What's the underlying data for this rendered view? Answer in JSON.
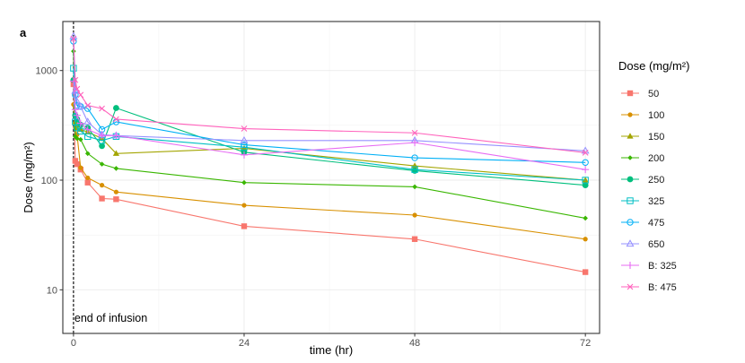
{
  "chart_data": {
    "type": "line",
    "panel_label": "a",
    "xlabel": "time (hr)",
    "ylabel": "Dose (mg/m²)",
    "y_scale": "log10",
    "xlim": [
      -1.5,
      74
    ],
    "ylim": [
      4,
      2800
    ],
    "x_ticks": [
      0,
      24,
      48,
      72
    ],
    "y_ticks": [
      10,
      100,
      1000
    ],
    "grid": true,
    "legend": {
      "title": "Dose (mg/m²)",
      "position": "right"
    },
    "annotations": [
      {
        "text": "end of infusion",
        "x": 0
      }
    ],
    "series": [
      {
        "name": "50",
        "color": "#F8766D",
        "marker": "square",
        "x": [
          0,
          0.25,
          0.5,
          1,
          2,
          4,
          6,
          24,
          48,
          72
        ],
        "y": [
          750,
          150,
          140,
          125,
          95,
          68,
          67,
          38,
          29,
          14.5
        ]
      },
      {
        "name": "100",
        "color": "#D89000",
        "marker": "circle",
        "x": [
          0,
          0.25,
          0.5,
          1,
          2,
          4,
          6,
          24,
          48,
          72
        ],
        "y": [
          490,
          300,
          260,
          130,
          105,
          90,
          78,
          59,
          48,
          29
        ]
      },
      {
        "name": "150",
        "color": "#A3A500",
        "marker": "triangle",
        "x": [
          0,
          0.25,
          0.5,
          1,
          2,
          4,
          6,
          24,
          48,
          72
        ],
        "y": [
          840,
          340,
          300,
          290,
          275,
          240,
          175,
          195,
          135,
          100
        ]
      },
      {
        "name": "200",
        "color": "#39B600",
        "marker": "diamond",
        "x": [
          0,
          0.25,
          0.5,
          1,
          2,
          4,
          6,
          24,
          48,
          72
        ],
        "y": [
          1500,
          250,
          240,
          235,
          175,
          140,
          128,
          95,
          87,
          45
        ]
      },
      {
        "name": "250",
        "color": "#00BF7D",
        "marker": "circle-filled",
        "x": [
          0,
          0.25,
          0.5,
          1,
          2,
          4,
          6,
          24,
          48,
          72
        ],
        "y": [
          820,
          390,
          360,
          320,
          300,
          205,
          455,
          180,
          122,
          90
        ]
      },
      {
        "name": "325",
        "color": "#00BFC4",
        "marker": "square-open",
        "x": [
          0,
          0.25,
          0.5,
          1,
          2,
          4,
          6,
          24,
          48,
          72
        ],
        "y": [
          1050,
          340,
          300,
          280,
          250,
          230,
          250,
          200,
          125,
          100
        ]
      },
      {
        "name": "475",
        "color": "#00B0F6",
        "marker": "circle-open",
        "x": [
          0,
          0.25,
          0.5,
          1,
          2,
          4,
          6,
          24,
          48,
          72
        ],
        "y": [
          1850,
          600,
          480,
          470,
          450,
          290,
          340,
          210,
          160,
          145
        ]
      },
      {
        "name": "650",
        "color": "#9590FF",
        "marker": "triangle-open",
        "x": [
          0,
          0.25,
          0.5,
          1,
          2,
          4,
          6,
          24,
          48,
          72
        ],
        "y": [
          2050,
          650,
          520,
          470,
          340,
          260,
          255,
          230,
          230,
          185
        ]
      },
      {
        "name": "B: 325",
        "color": "#E76BF3",
        "marker": "plus",
        "x": [
          0,
          0.25,
          0.5,
          1,
          2,
          4,
          6,
          24,
          48,
          72
        ],
        "y": [
          800,
          440,
          390,
          330,
          290,
          255,
          255,
          170,
          220,
          125
        ]
      },
      {
        "name": "B: 475",
        "color": "#FF62BC",
        "marker": "cross",
        "x": [
          0,
          0.25,
          0.5,
          1,
          2,
          4,
          6,
          24,
          48,
          72
        ],
        "y": [
          1950,
          820,
          680,
          600,
          480,
          450,
          360,
          295,
          270,
          178
        ]
      }
    ]
  }
}
